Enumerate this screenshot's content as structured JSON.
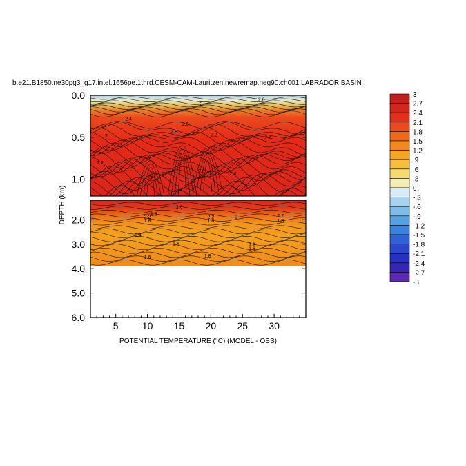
{
  "chart_data": {
    "type": "heatmap",
    "title": "b.e21.B1850.ne30pg3_g17.intel.1656pe.1thrd.CESM-CAM-Lauritzen.newremap.neg90.ch001 LABRADOR BASIN",
    "xlabel": "POTENTIAL TEMPERATURE (°C) (MODEL - OBS)",
    "ylabel": "DEPTH (km)",
    "xticks": [
      5,
      10,
      15,
      20,
      25,
      30
    ],
    "xlim": [
      1,
      35
    ],
    "upper_panel": {
      "ylim": [
        0.0,
        1.2
      ],
      "yticks": [
        0.0,
        0.5,
        1.0
      ],
      "ytick_labels": [
        "0.0",
        "0.5",
        "1.0"
      ]
    },
    "lower_panel": {
      "ylim": [
        1.2,
        6.0
      ],
      "yticks": [
        2.0,
        3.0,
        4.0,
        5.0,
        6.0
      ],
      "ytick_labels": [
        "2.0",
        "3.0",
        "4.0",
        "5.0",
        "6.0"
      ],
      "data_bottom": 3.9
    },
    "colorbar": {
      "levels": [
        3,
        2.7,
        2.4,
        2.1,
        1.8,
        1.5,
        1.2,
        0.9,
        0.6,
        0.3,
        0,
        -0.3,
        -0.6,
        -0.9,
        -1.2,
        -1.5,
        -1.8,
        -2.1,
        -2.4,
        -2.7,
        -3
      ],
      "labels": [
        "3",
        "2.7",
        "2.4",
        "2.1",
        "1.8",
        "1.5",
        "1.2",
        ".9",
        ".6",
        ".3",
        "0",
        "-.3",
        "-.6",
        "-.9",
        "-1.2",
        "-1.5",
        "-1.8",
        "-2.1",
        "-2.4",
        "-2.7",
        "-3"
      ]
    },
    "contour_labels_upper": [
      {
        "x": 18.5,
        "y": 0.12,
        "text": "2"
      },
      {
        "x": 7,
        "y": 0.3,
        "text": "2.4"
      },
      {
        "x": 14.2,
        "y": 0.45,
        "text": "2.8"
      },
      {
        "x": 16,
        "y": 0.36,
        "text": "2.6"
      },
      {
        "x": 20.5,
        "y": 0.49,
        "text": "2.2"
      },
      {
        "x": 3.5,
        "y": 0.5,
        "text": "2"
      },
      {
        "x": 23.5,
        "y": 0.95,
        "text": "2.4"
      },
      {
        "x": 29,
        "y": 0.52,
        "text": "2.2"
      },
      {
        "x": 10.5,
        "y": 1.0,
        "text": "3"
      },
      {
        "x": 18.5,
        "y": 0.92,
        "text": "2.6"
      },
      {
        "x": 2.5,
        "y": 0.82,
        "text": "2.2"
      },
      {
        "x": 28,
        "y": 0.07,
        "text": "2.6"
      }
    ],
    "contour_labels_lower": [
      {
        "x": 15,
        "y": 1.55,
        "text": "2.6"
      },
      {
        "x": 11,
        "y": 1.83,
        "text": "2.5"
      },
      {
        "x": 10,
        "y": 1.95,
        "text": "2.2"
      },
      {
        "x": 10,
        "y": 2.1,
        "text": "1.8"
      },
      {
        "x": 20,
        "y": 1.95,
        "text": "2.2"
      },
      {
        "x": 20,
        "y": 2.1,
        "text": "1.8"
      },
      {
        "x": 24,
        "y": 1.95,
        "text": "2"
      },
      {
        "x": 31,
        "y": 1.9,
        "text": "2.2"
      },
      {
        "x": 31,
        "y": 2.1,
        "text": "1.8"
      },
      {
        "x": 8.5,
        "y": 2.7,
        "text": "1.4"
      },
      {
        "x": 14.5,
        "y": 3.05,
        "text": "1.6"
      },
      {
        "x": 26.5,
        "y": 3.05,
        "text": "1.6"
      },
      {
        "x": 26.5,
        "y": 3.25,
        "text": "1.8"
      },
      {
        "x": 10,
        "y": 3.6,
        "text": "1.6"
      },
      {
        "x": 19.5,
        "y": 3.55,
        "text": "1.8"
      }
    ]
  }
}
